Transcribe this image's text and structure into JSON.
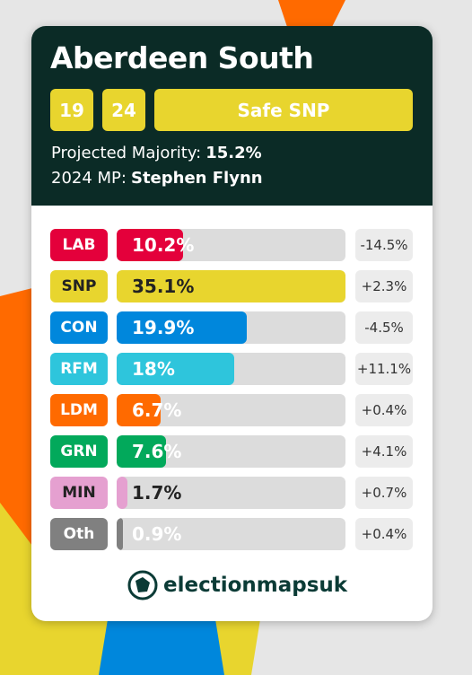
{
  "header": {
    "title": "Aberdeen South",
    "badges": [
      "19",
      "24",
      "Safe SNP"
    ],
    "majority_label": "Projected Majority:",
    "majority": "15.2%",
    "mp_label": "2024 MP:",
    "mp": "Stephen Flynn"
  },
  "parties": [
    {
      "code": "LAB",
      "value": 10.2,
      "label": "10.2%",
      "change": "-14.5%",
      "color": "#e4003b",
      "text_color": "#ffffff"
    },
    {
      "code": "SNP",
      "value": 35.1,
      "label": "35.1%",
      "change": "+2.3%",
      "color": "#e8d52e",
      "text_color": "#222222"
    },
    {
      "code": "CON",
      "value": 19.9,
      "label": "19.9%",
      "change": "-4.5%",
      "color": "#0087dc",
      "text_color": "#ffffff"
    },
    {
      "code": "RFM",
      "value": 18,
      "label": "18%",
      "change": "+11.1%",
      "color": "#2ec5dc",
      "text_color": "#ffffff"
    },
    {
      "code": "LDM",
      "value": 6.7,
      "label": "6.7%",
      "change": "+0.4%",
      "color": "#ff6a00",
      "text_color": "#ffffff"
    },
    {
      "code": "GRN",
      "value": 7.6,
      "label": "7.6%",
      "change": "+4.1%",
      "color": "#02a95b",
      "text_color": "#ffffff"
    },
    {
      "code": "MIN",
      "value": 1.7,
      "label": "1.7%",
      "change": "+0.7%",
      "color": "#e5a0d0",
      "text_color": "#222222"
    },
    {
      "code": "Oth",
      "value": 0.9,
      "label": "0.9%",
      "change": "+0.4%",
      "color": "#808080",
      "text_color": "#ffffff"
    }
  ],
  "logo": "electionmapsuk"
}
